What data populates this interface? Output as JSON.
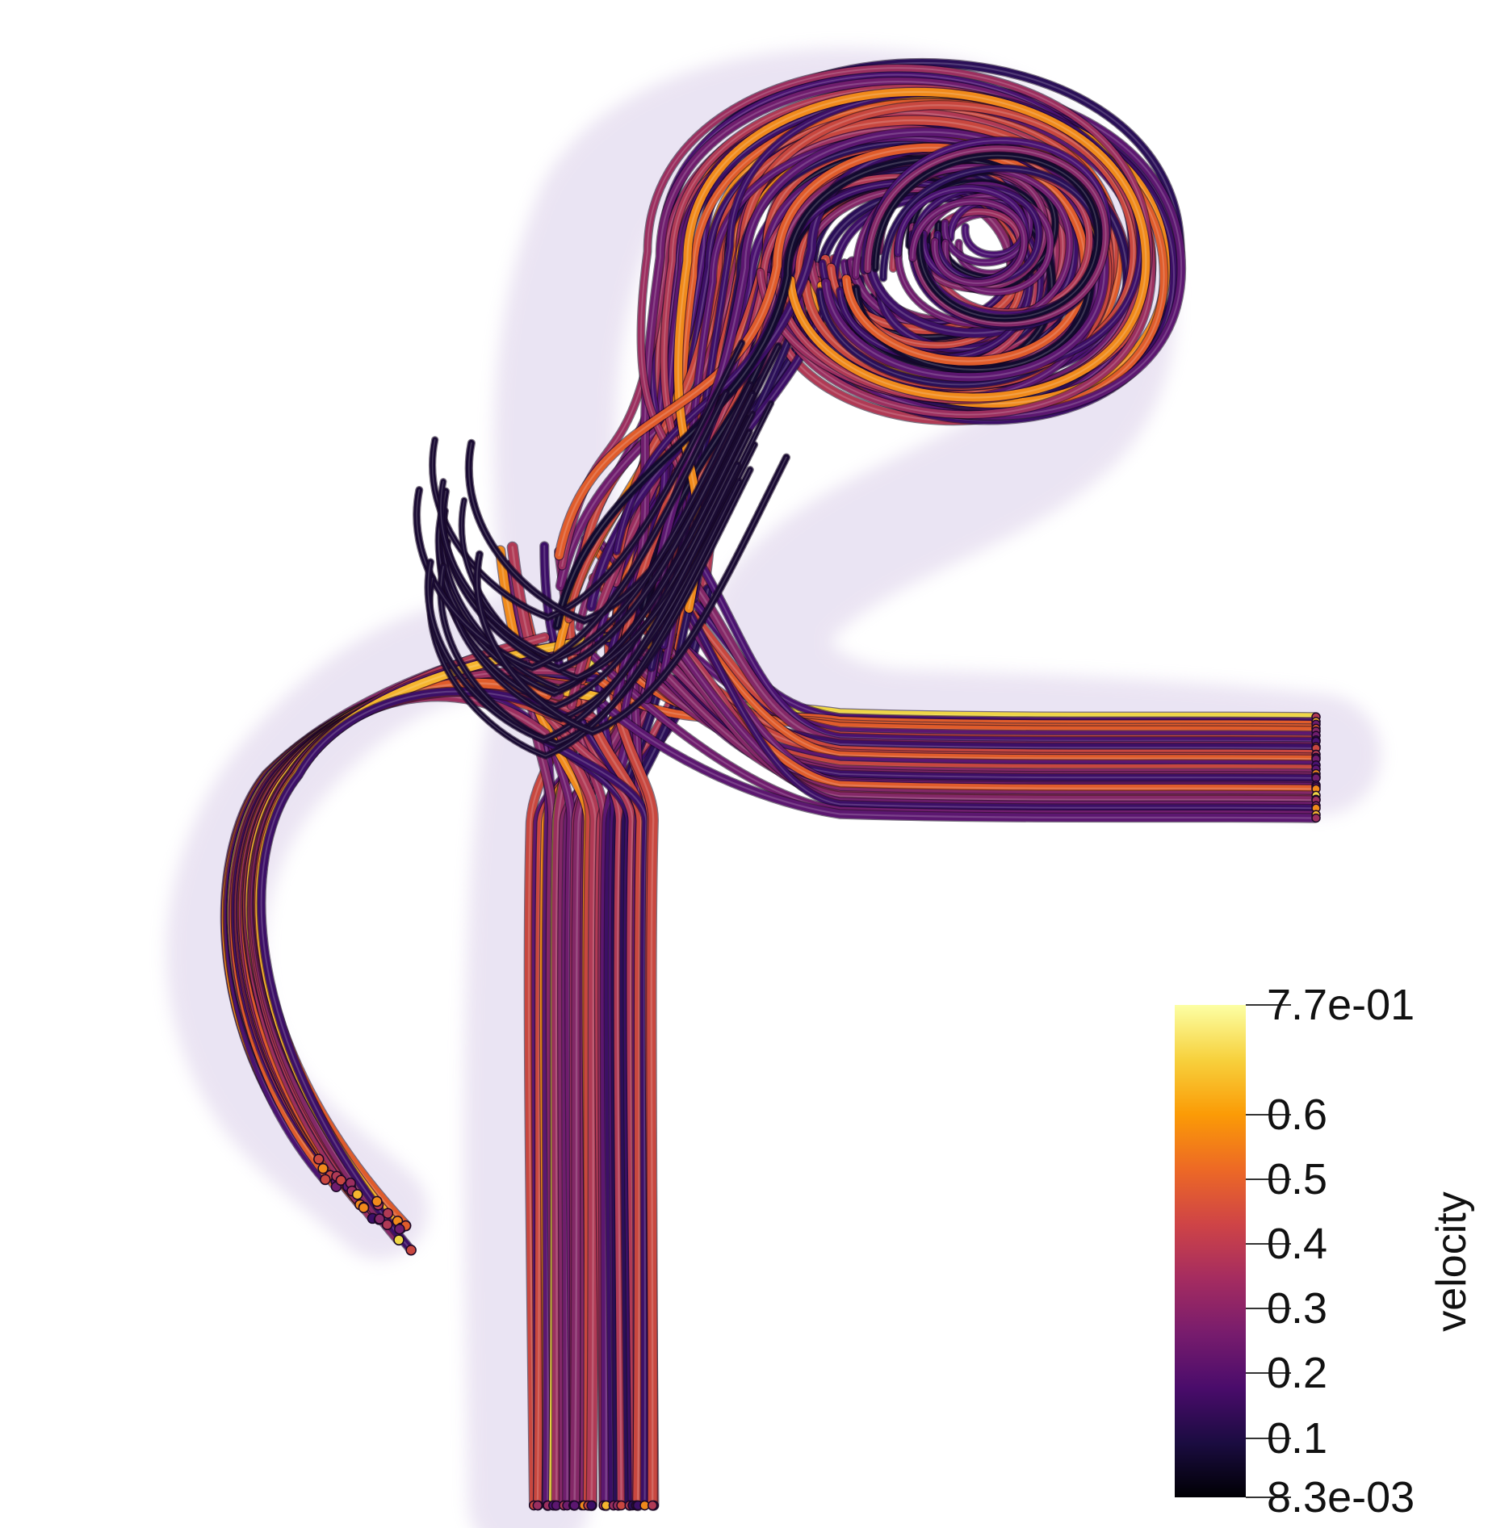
{
  "colorbar": {
    "title": "velocity",
    "ticks": [
      {
        "label": "7.7e-01",
        "value": 0.77
      },
      {
        "label": "0.6",
        "value": 0.6
      },
      {
        "label": "0.5",
        "value": 0.5
      },
      {
        "label": "0.4",
        "value": 0.4
      },
      {
        "label": "0.3",
        "value": 0.3
      },
      {
        "label": "0.2",
        "value": 0.2
      },
      {
        "label": "0.1",
        "value": 0.1
      },
      {
        "label": "8.3e-03",
        "value": 0.0083
      }
    ],
    "range": [
      0.0083,
      0.77
    ],
    "colormap": [
      "#000004",
      "#1b0c41",
      "#4a0c6b",
      "#781c6d",
      "#a52c60",
      "#cf4446",
      "#ed6925",
      "#fb9b06",
      "#f7d13d",
      "#fcffa4"
    ]
  },
  "scene": {
    "background": "#ffffff",
    "tube_colors": [
      "#120a2e",
      "#2a0f57",
      "#3c0f66",
      "#4a1270",
      "#5c1770",
      "#6f1d6d",
      "#842867",
      "#9b2f5f",
      "#b03a55",
      "#c8473f",
      "#e05c2b",
      "#f08a1b",
      "#f5b52e",
      "#efd645"
    ],
    "glow_color": "#c6b3dd"
  }
}
